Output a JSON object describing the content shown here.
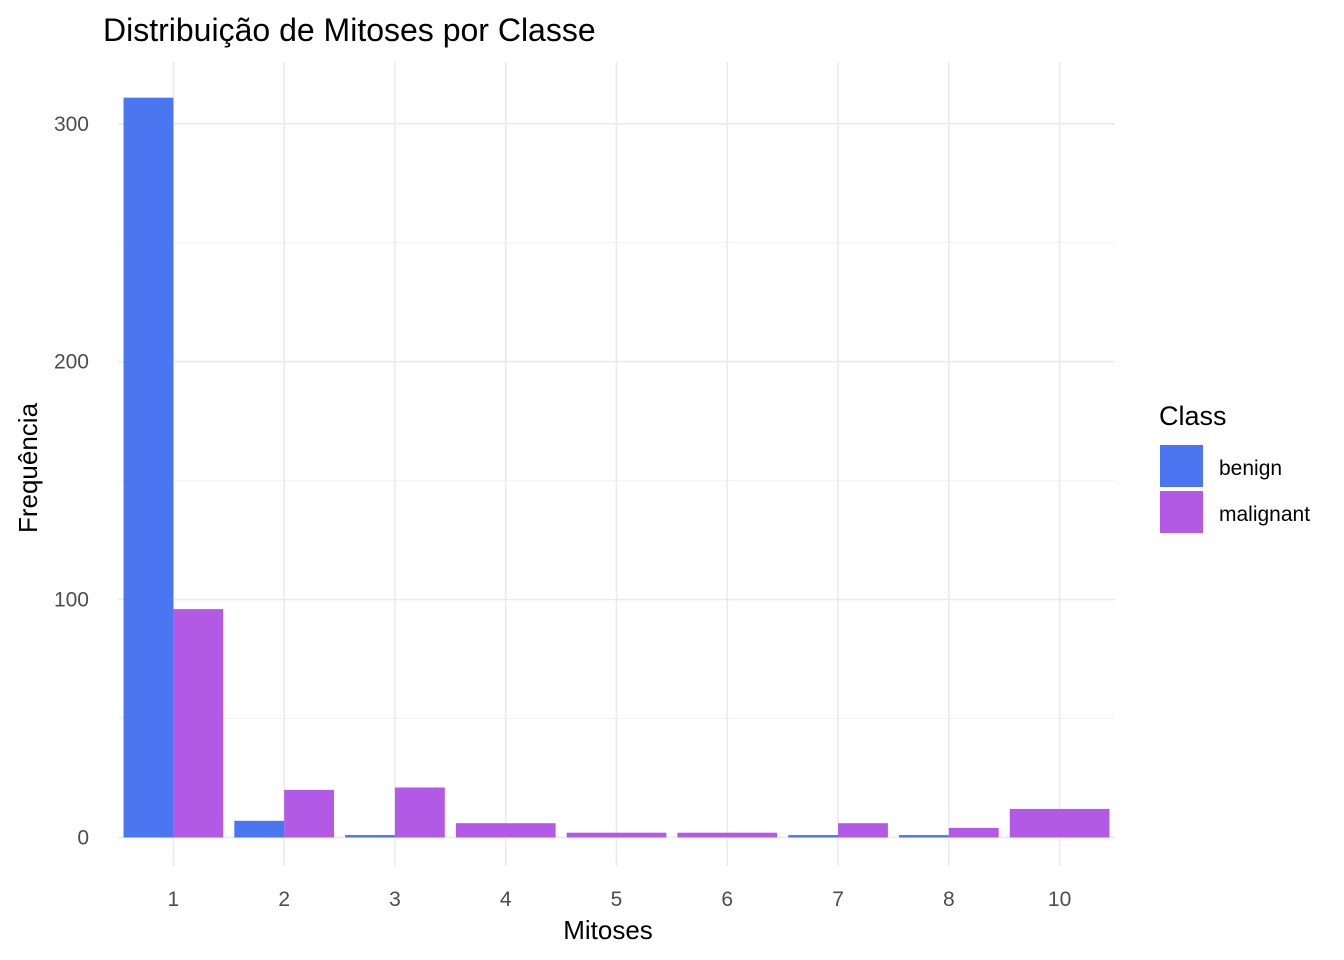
{
  "chart_data": {
    "type": "bar",
    "title": "Distribuição de Mitoses por Classe",
    "xlabel": "Mitoses",
    "ylabel": "Frequência",
    "categories": [
      "1",
      "2",
      "3",
      "4",
      "5",
      "6",
      "7",
      "8",
      "10"
    ],
    "series": [
      {
        "name": "benign",
        "color": "#4a76f2",
        "values": [
          311,
          7,
          1,
          0,
          0,
          0,
          1,
          1,
          0
        ]
      },
      {
        "name": "malignant",
        "color": "#b25ae6",
        "values": [
          96,
          20,
          21,
          6,
          2,
          2,
          6,
          4,
          12
        ]
      }
    ],
    "ylim": [
      -12,
      326
    ],
    "yticks": [
      0,
      100,
      200,
      300
    ],
    "grid": true,
    "legend": {
      "title": "Class",
      "position": "right"
    }
  }
}
